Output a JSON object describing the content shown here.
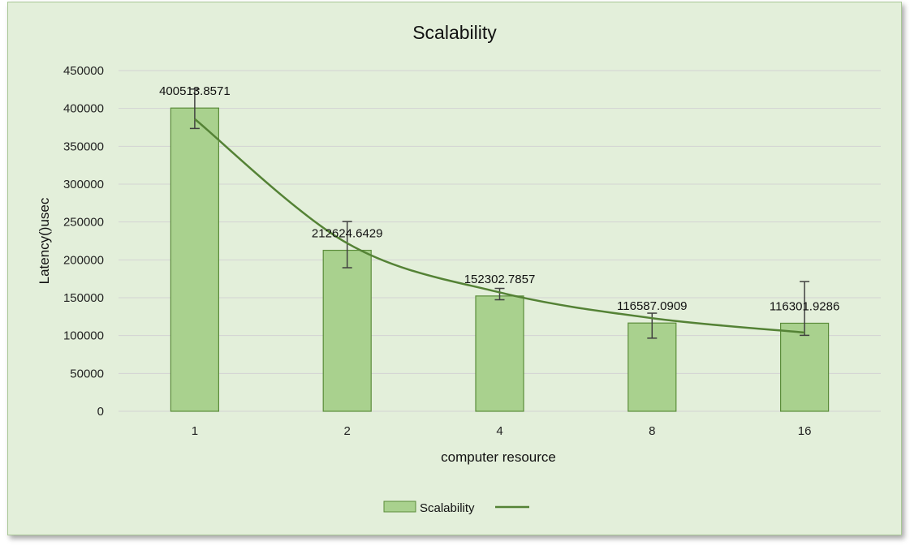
{
  "colors": {
    "background": "#e3efda",
    "bar_fill": "#a9d18e",
    "bar_stroke": "#5b8c3a",
    "trendline": "#548235",
    "gridline": "#d3d3d3",
    "error_bar": "#404040"
  },
  "chart_data": {
    "type": "bar",
    "title": "Scalability",
    "xlabel": "computer resource",
    "ylabel": "Latency()usec",
    "categories": [
      "1",
      "2",
      "4",
      "8",
      "16"
    ],
    "series": [
      {
        "name": "Scalability",
        "values": [
          400513.8571,
          212624.6429,
          152302.7857,
          116587.0909,
          116301.9286
        ],
        "data_labels": [
          "400513.8571",
          "212624.6429",
          "152302.7857",
          "116587.0909",
          "116301.9286"
        ],
        "error_plus": [
          25000,
          38000,
          10000,
          13000,
          55000
        ],
        "error_minus": [
          27000,
          23000,
          5000,
          20000,
          16000
        ]
      }
    ],
    "trendline": {
      "type": "power",
      "values": [
        386000,
        222000,
        157000,
        123000,
        104000
      ]
    },
    "ylim": [
      0,
      450000
    ],
    "yticks": [
      "0",
      "50000",
      "100000",
      "150000",
      "200000",
      "250000",
      "300000",
      "350000",
      "400000",
      "450000"
    ],
    "grid": true,
    "legend": {
      "position": "bottom",
      "entries": [
        "Scalability",
        ""
      ]
    }
  }
}
